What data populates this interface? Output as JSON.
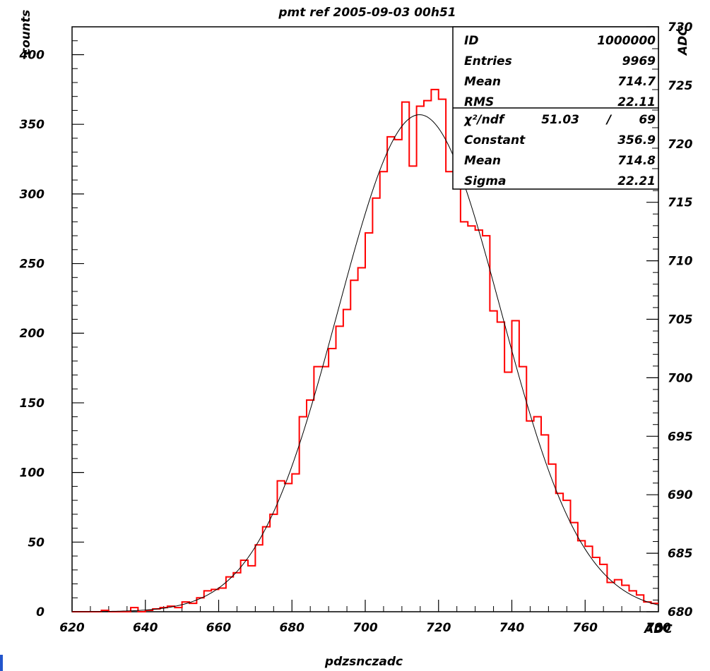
{
  "title": "pmt ref 2005-09-03 00h51",
  "chart_data": {
    "type": "histogram",
    "title": "pmt ref 2005-09-03 00h51",
    "xlabel": "pdzsnczadc",
    "xunit": "ADC",
    "ylabel": "counts",
    "right_axis_label": "ADC",
    "xlim": [
      620,
      780
    ],
    "ylim": [
      0,
      420
    ],
    "right_ylim": [
      680,
      730
    ],
    "x_ticks": [
      620,
      640,
      660,
      680,
      700,
      720,
      740,
      760,
      780
    ],
    "y_ticks": [
      0,
      50,
      100,
      150,
      200,
      250,
      300,
      350,
      400
    ],
    "right_ticks": [
      680,
      685,
      690,
      695,
      700,
      705,
      710,
      715,
      720,
      725,
      730
    ],
    "bin_width": 2,
    "bin_start": 620,
    "series": [
      {
        "color": "#ff0000",
        "values": [
          0,
          0,
          0,
          0,
          1,
          0,
          0,
          0,
          3,
          0,
          1,
          2,
          3,
          4,
          3,
          7,
          6,
          10,
          15,
          16,
          17,
          25,
          28,
          37,
          33,
          48,
          61,
          70,
          94,
          92,
          99,
          140,
          152,
          176,
          176,
          189,
          205,
          217,
          238,
          247,
          272,
          297,
          316,
          341,
          339,
          366,
          320,
          363,
          367,
          375,
          368,
          316,
          343,
          280,
          277,
          274,
          270,
          216,
          208,
          172,
          209,
          176,
          137,
          140,
          127,
          106,
          85,
          80,
          64,
          51,
          47,
          39,
          34,
          21,
          23,
          19,
          15,
          12,
          7,
          6
        ]
      },
      {
        "type": "fit-gaussian",
        "color": "#000000",
        "constant": 356.9,
        "mean": 714.8,
        "sigma": 22.21
      }
    ]
  },
  "stats_box": {
    "rows": [
      {
        "label": "ID",
        "value": "1000000"
      },
      {
        "label": "Entries",
        "value": "9969"
      },
      {
        "label": "Mean",
        "value": "714.7"
      },
      {
        "label": "RMS",
        "value": "22.11"
      }
    ],
    "chi2_label": "χ²/ndf",
    "chi2_value": "51.03",
    "chi2_sep": "/",
    "ndf_value": "69",
    "fit_rows": [
      {
        "label": "Constant",
        "value": "356.9"
      },
      {
        "label": "Mean",
        "value": "714.8"
      },
      {
        "label": "Sigma",
        "value": "22.21"
      }
    ]
  }
}
